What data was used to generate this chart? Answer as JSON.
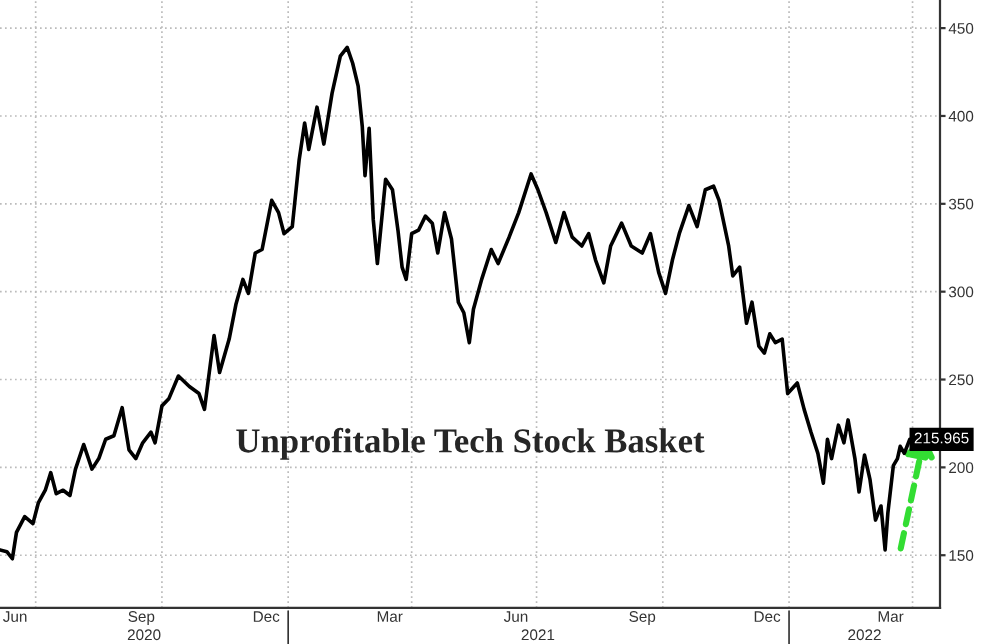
{
  "chart_data": {
    "type": "line",
    "title": "Unprofitable Tech Stock Basket",
    "x": [
      "2020-06-05",
      "2020-06-10",
      "2020-06-14",
      "2020-06-17",
      "2020-06-23",
      "2020-06-29",
      "2020-07-03",
      "2020-07-08",
      "2020-07-12",
      "2020-07-16",
      "2020-07-21",
      "2020-07-26",
      "2020-07-30",
      "2020-08-05",
      "2020-08-11",
      "2020-08-16",
      "2020-08-21",
      "2020-08-27",
      "2020-09-02",
      "2020-09-07",
      "2020-09-12",
      "2020-09-17",
      "2020-09-23",
      "2020-09-26",
      "2020-10-01",
      "2020-10-06",
      "2020-10-13",
      "2020-10-21",
      "2020-10-28",
      "2020-11-01",
      "2020-11-08",
      "2020-11-12",
      "2020-11-19",
      "2020-11-24",
      "2020-11-29",
      "2020-12-03",
      "2020-12-08",
      "2020-12-13",
      "2020-12-20",
      "2020-12-25",
      "2020-12-29",
      "2021-01-04",
      "2021-01-09",
      "2021-01-13",
      "2021-01-16",
      "2021-01-22",
      "2021-01-27",
      "2021-02-02",
      "2021-02-08",
      "2021-02-13",
      "2021-02-17",
      "2021-02-21",
      "2021-02-24",
      "2021-02-26",
      "2021-03-01",
      "2021-03-04",
      "2021-03-07",
      "2021-03-13",
      "2021-03-18",
      "2021-03-22",
      "2021-03-25",
      "2021-03-28",
      "2021-04-01",
      "2021-04-06",
      "2021-04-11",
      "2021-04-16",
      "2021-04-20",
      "2021-04-25",
      "2021-04-30",
      "2021-05-05",
      "2021-05-09",
      "2021-05-13",
      "2021-05-16",
      "2021-05-22",
      "2021-05-29",
      "2021-06-03",
      "2021-06-11",
      "2021-06-18",
      "2021-06-27",
      "2021-07-02",
      "2021-07-08",
      "2021-07-15",
      "2021-07-21",
      "2021-07-27",
      "2021-08-03",
      "2021-08-08",
      "2021-08-13",
      "2021-08-19",
      "2021-08-24",
      "2021-09-01",
      "2021-09-08",
      "2021-09-16",
      "2021-09-22",
      "2021-09-28",
      "2021-10-03",
      "2021-10-08",
      "2021-10-13",
      "2021-10-20",
      "2021-10-26",
      "2021-11-01",
      "2021-11-07",
      "2021-11-11",
      "2021-11-18",
      "2021-11-21",
      "2021-11-26",
      "2021-12-01",
      "2021-12-05",
      "2021-12-10",
      "2021-12-14",
      "2021-12-18",
      "2021-12-22",
      "2021-12-27",
      "2021-12-31",
      "2022-01-07",
      "2022-01-12",
      "2022-01-17",
      "2022-01-22",
      "2022-01-26",
      "2022-01-29",
      "2022-02-01",
      "2022-02-06",
      "2022-02-10",
      "2022-02-13",
      "2022-02-18",
      "2022-02-21",
      "2022-02-25",
      "2022-03-01",
      "2022-03-05",
      "2022-03-09",
      "2022-03-12",
      "2022-03-14",
      "2022-03-18",
      "2022-03-21",
      "2022-03-23",
      "2022-03-26",
      "2022-03-30",
      "2022-03-31"
    ],
    "series": [
      {
        "color": "#000000",
        "values": [
          153,
          152,
          148,
          163,
          172,
          168,
          180,
          187,
          197,
          185,
          187,
          184,
          199,
          213,
          199,
          205,
          216,
          218,
          234,
          210,
          205,
          214,
          220,
          214,
          235,
          239,
          252,
          246,
          242,
          233,
          275,
          254,
          273,
          293,
          307,
          299,
          322,
          324,
          352,
          345,
          333,
          337,
          375,
          396,
          381,
          405,
          384,
          413,
          434,
          439,
          430,
          417,
          394,
          366,
          393,
          341,
          316,
          364,
          358,
          335,
          314,
          307,
          333,
          335,
          343,
          339,
          322,
          345,
          330,
          294,
          288,
          271,
          290,
          307,
          324,
          316,
          331,
          345,
          367,
          358,
          345,
          328,
          345,
          331,
          326,
          333,
          318,
          305,
          326,
          339,
          326,
          322,
          333,
          311,
          299,
          318,
          333,
          349,
          337,
          358,
          360,
          352,
          326,
          309,
          314,
          282,
          294,
          269,
          265,
          276,
          271,
          273,
          242,
          248,
          233,
          220,
          208,
          191,
          216,
          205,
          224,
          214,
          227,
          205,
          186,
          207,
          193,
          170,
          178,
          153,
          174,
          201,
          205,
          212,
          208,
          216,
          215.965
        ]
      }
    ],
    "xlim": [
      "2020-06-05",
      "2022-04-21"
    ],
    "xticks": [
      {
        "value": "2020-06-16",
        "label": "Jun"
      },
      {
        "value": "2020-07-01",
        "label": null
      },
      {
        "value": "2020-09-16",
        "label": "Sep"
      },
      {
        "value": "2020-10-01",
        "label": null
      },
      {
        "value": "2020-12-16",
        "label": "Dec"
      },
      {
        "value": "2021-01-01",
        "label": null
      },
      {
        "value": "2021-03-16",
        "label": "Mar"
      },
      {
        "value": "2021-04-01",
        "label": null
      },
      {
        "value": "2021-06-16",
        "label": "Jun"
      },
      {
        "value": "2021-07-01",
        "label": null
      },
      {
        "value": "2021-09-16",
        "label": "Sep"
      },
      {
        "value": "2021-10-01",
        "label": null
      },
      {
        "value": "2021-12-16",
        "label": "Dec"
      },
      {
        "value": "2022-01-01",
        "label": null
      },
      {
        "value": "2022-03-16",
        "label": "Mar"
      },
      {
        "value": "2022-04-01",
        "label": null
      }
    ],
    "x2lim": [
      "2020-06-05",
      "2022-04-21"
    ],
    "x2ticks": [
      {
        "value": "2020-09-18",
        "label": "2020"
      },
      {
        "value": "2021-01-01",
        "label": null
      },
      {
        "value": "2021-07-02",
        "label": "2021"
      },
      {
        "value": "2022-01-01",
        "label": null
      },
      {
        "value": "2022-02-25",
        "label": "2022"
      }
    ],
    "ylim": [
      120,
      466
    ],
    "yticks": [
      150,
      200,
      250,
      300,
      350,
      400,
      450
    ],
    "grid": true,
    "line_style": "solid",
    "annotations": [
      {
        "text": "215.965",
        "x": "2022-03-31",
        "y": 215.965
      }
    ]
  }
}
